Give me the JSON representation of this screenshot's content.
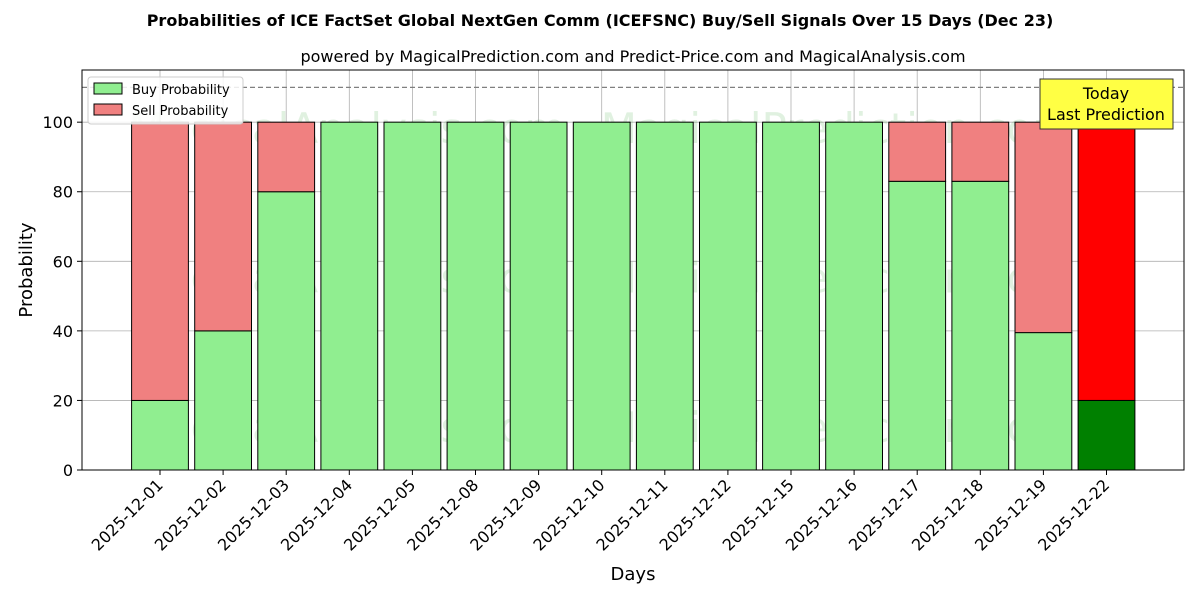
{
  "chart_data": {
    "type": "bar",
    "stacked": true,
    "title": "Probabilities of ICE FactSet Global NextGen Comm (ICEFSNC) Buy/Sell Signals Over 15 Days (Dec 23)",
    "subtitle": "powered by MagicalPrediction.com and Predict-Price.com and MagicalAnalysis.com",
    "xlabel": "Days",
    "ylabel": "Probability",
    "ylim": [
      0,
      115
    ],
    "yticks": [
      0,
      20,
      40,
      60,
      80,
      100
    ],
    "grid": true,
    "legend_position": "top-left",
    "reference_line": 110,
    "categories": [
      "2025-12-01",
      "2025-12-02",
      "2025-12-03",
      "2025-12-04",
      "2025-12-05",
      "2025-12-08",
      "2025-12-09",
      "2025-12-10",
      "2025-12-11",
      "2025-12-12",
      "2025-12-15",
      "2025-12-16",
      "2025-12-17",
      "2025-12-18",
      "2025-12-19",
      "2025-12-22"
    ],
    "series": [
      {
        "name": "Buy Probability",
        "color": "#90ee90",
        "values": [
          20,
          40,
          80,
          100,
          100,
          100,
          100,
          100,
          100,
          100,
          100,
          100,
          83,
          83,
          39.5,
          20
        ]
      },
      {
        "name": "Sell Probability",
        "color": "#f08080",
        "values": [
          80,
          60,
          20,
          0,
          0,
          0,
          0,
          0,
          0,
          0,
          0,
          0,
          17,
          17,
          60.5,
          80
        ]
      }
    ],
    "highlight": {
      "index": 15,
      "buy_color": "#008000",
      "sell_color": "#ff0000"
    },
    "annotation": {
      "line1": "Today",
      "line2": "Last Prediction",
      "background": "#ffff44"
    },
    "watermarks": [
      "MagicalAnalysis.com",
      "MagicalPrediction.com"
    ]
  }
}
